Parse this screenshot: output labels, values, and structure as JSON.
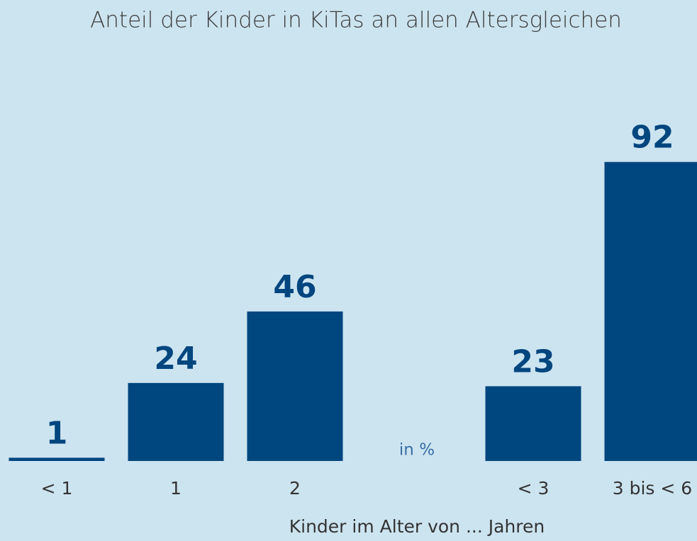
{
  "chart_data": {
    "type": "bar",
    "title": "Anteil der Kinder in KiTas an allen Altersgleichen",
    "categories": [
      "< 1",
      "1",
      "2",
      null,
      "< 3",
      "3 bis < 6"
    ],
    "values": [
      1,
      24,
      46,
      null,
      23,
      92
    ],
    "color": "#00467f",
    "ylim": [
      0,
      100
    ],
    "x_label": "Kinder im Alter von ... Jahren",
    "annotation": "in %"
  }
}
